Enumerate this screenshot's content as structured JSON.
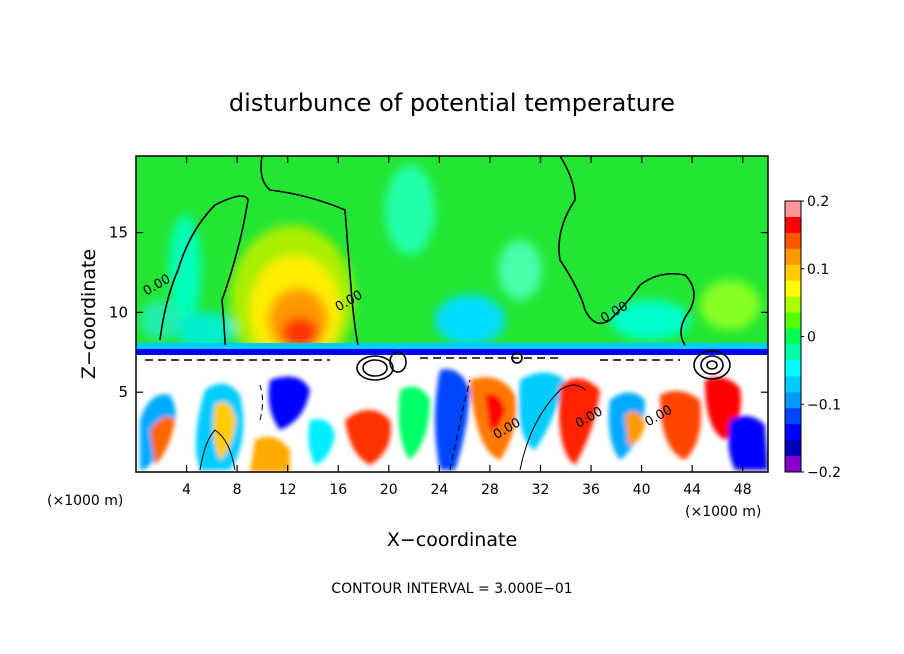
{
  "chart_data": {
    "type": "heatmap",
    "title": "disturbunce of potential temperature",
    "xlabel": "X−coordinate",
    "ylabel": "Z−coordinate",
    "x_unit_left": "(×1000 m)",
    "x_unit_right": "(×1000 m)",
    "footer": "CONTOUR INTERVAL = 3.000E−01",
    "xlim": [
      0,
      50
    ],
    "ylim": [
      0,
      19.8
    ],
    "x_ticks": [
      4,
      8,
      12,
      16,
      20,
      24,
      28,
      32,
      36,
      40,
      44,
      48
    ],
    "y_ticks": [
      5,
      10,
      15
    ],
    "colorbar": {
      "range": [
        -0.2,
        0.2
      ],
      "tick_values": [
        0.2,
        0.1,
        0,
        -0.1,
        -0.2
      ],
      "tick_labels": [
        "0.2",
        "0.1",
        "0",
        "−0.1",
        "−0.2"
      ],
      "colors": [
        "#ff9999",
        "#ff0000",
        "#ff5500",
        "#ff9900",
        "#ffcc00",
        "#ffff00",
        "#aaff00",
        "#55ff00",
        "#00ff55",
        "#00ffaa",
        "#00ffff",
        "#00ccff",
        "#0099ff",
        "#0044ff",
        "#0000ff",
        "#0000bb",
        "#8800cc"
      ]
    },
    "contour_labels": [
      {
        "text": "0.00",
        "x": 1.8,
        "z": 11.5
      },
      {
        "text": "0.00",
        "x": 17.0,
        "z": 10.5
      },
      {
        "text": "0.00",
        "x": 38.0,
        "z": 9.8
      },
      {
        "text": "0.00",
        "x": 29.5,
        "z": 2.5
      },
      {
        "text": "0.00",
        "x": 36.0,
        "z": 3.2
      },
      {
        "text": "0.00",
        "x": 41.5,
        "z": 3.3
      }
    ],
    "features": [
      {
        "name": "warm anomaly",
        "x_center": 13,
        "z_center": 9,
        "max_value": 0.13
      },
      {
        "name": "cool band at inversion",
        "z_level": 8,
        "min_value": -0.12
      }
    ],
    "grid": false
  }
}
